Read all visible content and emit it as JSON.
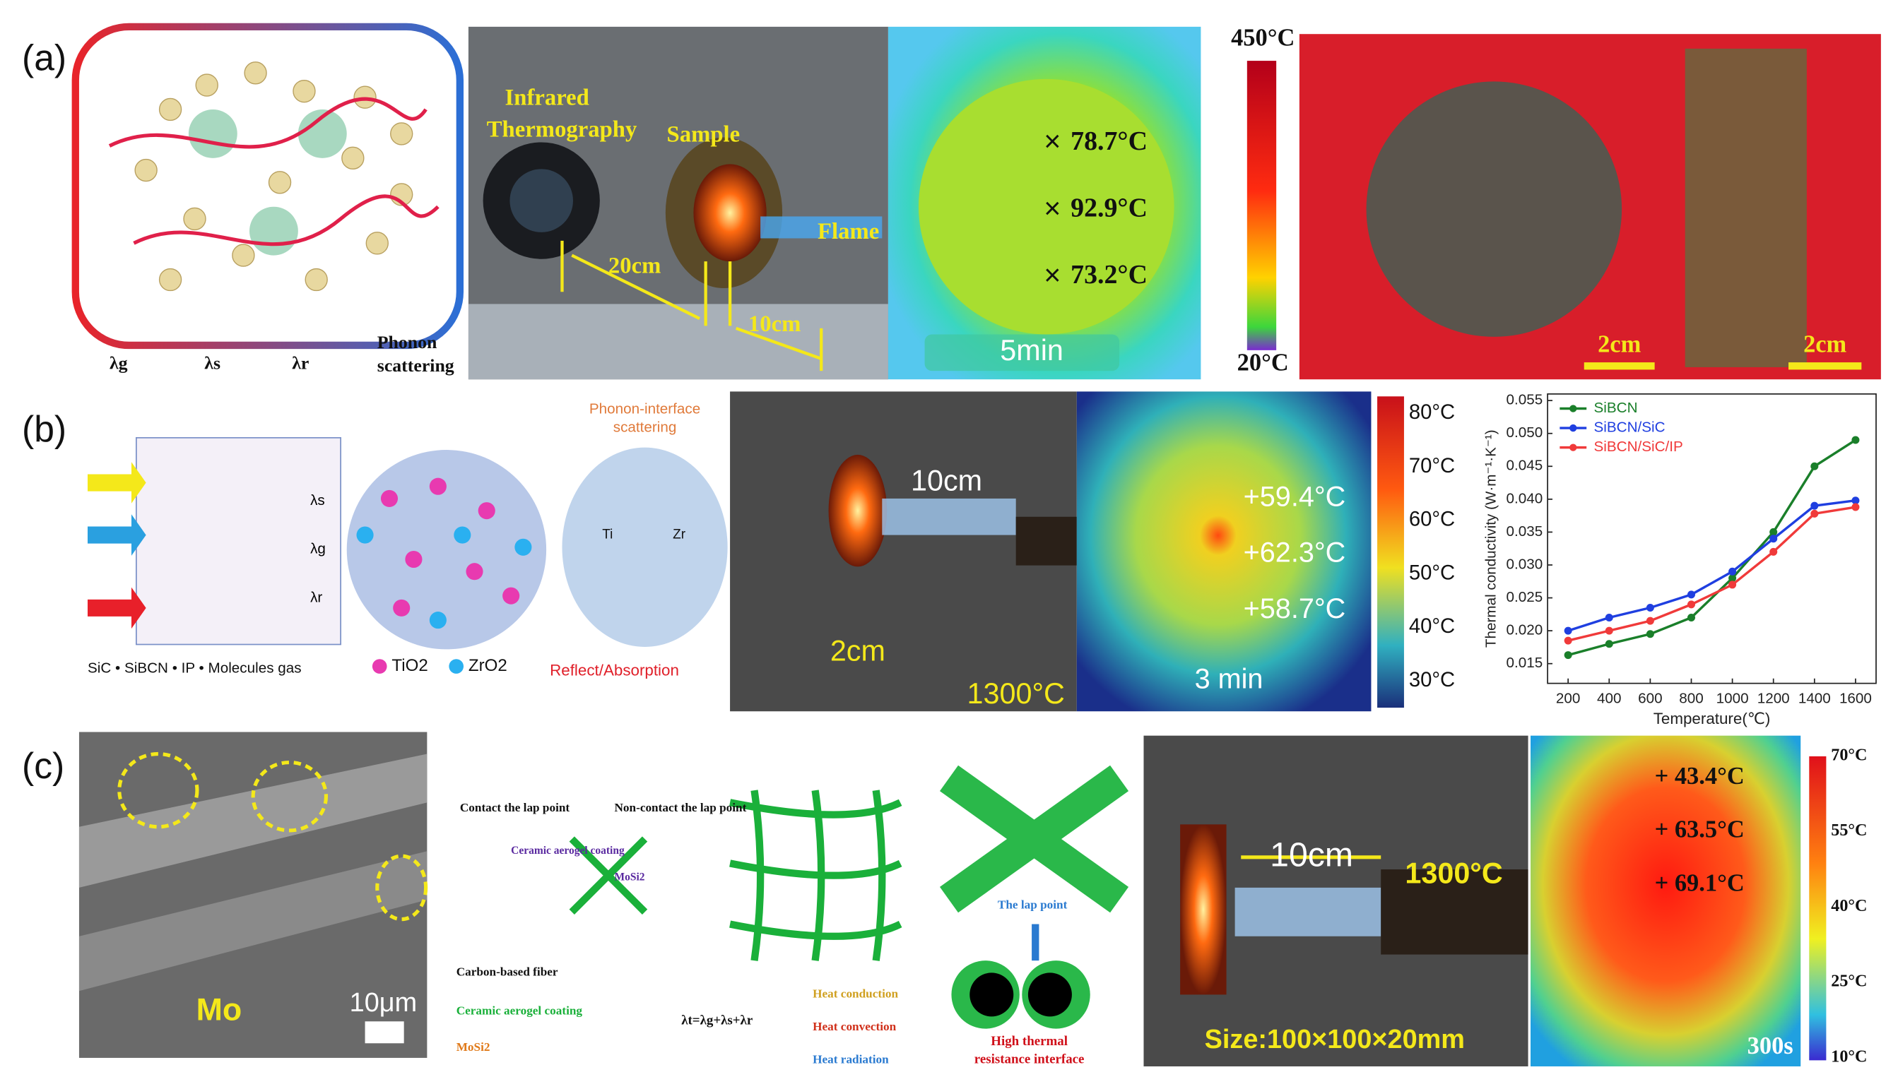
{
  "panel_labels": [
    "(a)",
    "(b)",
    "(c)"
  ],
  "a": {
    "schematic_legend": [
      "λg",
      "λs",
      "λr",
      "Phonon",
      "scattering"
    ],
    "photo_labels": [
      "Infrared",
      "Thermography",
      "Sample",
      "Flame",
      "20cm",
      "10cm"
    ],
    "thermal_readings": [
      "78.7°C",
      "92.9°C",
      "73.2°C"
    ],
    "thermal_time": "5min",
    "colorbar": [
      "450°C",
      "20°C"
    ],
    "scale_bars": [
      "2cm",
      "2cm"
    ]
  },
  "b": {
    "schematic_labels": [
      "λs",
      "λg",
      "λr"
    ],
    "schematic_legend": "SiC • SiBCN • IP • Molecules gas",
    "particle_legend": [
      "TiO2",
      "ZrO2"
    ],
    "interface_labels": [
      "Phonon-interface",
      "scattering",
      "Ti",
      "Zr",
      "Reflect/Absorption"
    ],
    "photo_labels": [
      "10cm",
      "2cm",
      "1300°C"
    ],
    "thermal_readings": [
      "+59.4°C",
      "+62.3°C",
      "+58.7°C"
    ],
    "thermal_time": "3 min",
    "colorbar": [
      "80°C",
      "70°C",
      "60°C",
      "50°C",
      "40°C",
      "30°C"
    ]
  },
  "chart_data": {
    "type": "line",
    "x": [
      200,
      400,
      600,
      800,
      1000,
      1200,
      1400,
      1600
    ],
    "series": [
      {
        "name": "SiBCN",
        "color": "#1a7f2a",
        "values": [
          0.0163,
          0.018,
          0.0195,
          0.022,
          0.028,
          0.035,
          0.045,
          0.049
        ]
      },
      {
        "name": "SiBCN/SiC",
        "color": "#1f3fe0",
        "values": [
          0.02,
          0.022,
          0.0235,
          0.0255,
          0.029,
          0.034,
          0.039,
          0.0398
        ]
      },
      {
        "name": "SiBCN/SiC/IP",
        "color": "#f03a3a",
        "values": [
          0.0185,
          0.02,
          0.0215,
          0.024,
          0.027,
          0.032,
          0.0378,
          0.0388
        ]
      }
    ],
    "xlim": [
      100,
      1700
    ],
    "ylim": [
      0.012,
      0.056
    ],
    "xticks": [
      200,
      400,
      600,
      800,
      1000,
      1200,
      1400,
      1600
    ],
    "yticks": [
      0.015,
      {
        "value": 0.02,
        "label": "0.020"
      },
      0.025,
      {
        "value": 0.03,
        "label": "0.030"
      },
      0.035,
      {
        "value": 0.04,
        "label": "0.040"
      },
      0.045,
      {
        "value": 0.05,
        "label": "0.050"
      },
      0.055
    ],
    "xlabel": "Temperature(℃)",
    "ylabel": "Thermal conductivity (W·m⁻¹·K⁻¹)",
    "legend": "upper left",
    "grid": false
  },
  "c": {
    "sem_labels": [
      "Mo",
      "10μm"
    ],
    "schematic_labels": [
      "Contact the lap point",
      "Non-contact the lap point",
      "Ceramic aerogel coating",
      "MoSi2",
      "Carbon-based fiber",
      "Ceramic aerogel coating",
      "MoSi2",
      "λt=λg+λs+λr",
      "Heat conduction",
      "Heat convection",
      "Heat radiation",
      "The lap point",
      "High thermal",
      "resistance interface"
    ],
    "photo_labels": [
      "10cm",
      "1300°C",
      "Size:100×100×20mm"
    ],
    "thermal_readings": [
      "+ 43.4°C",
      "+ 63.5°C",
      "+ 69.1°C"
    ],
    "thermal_time": "300s",
    "colorbar": [
      "70°C",
      "55°C",
      "40°C",
      "25°C",
      "10°C"
    ]
  }
}
